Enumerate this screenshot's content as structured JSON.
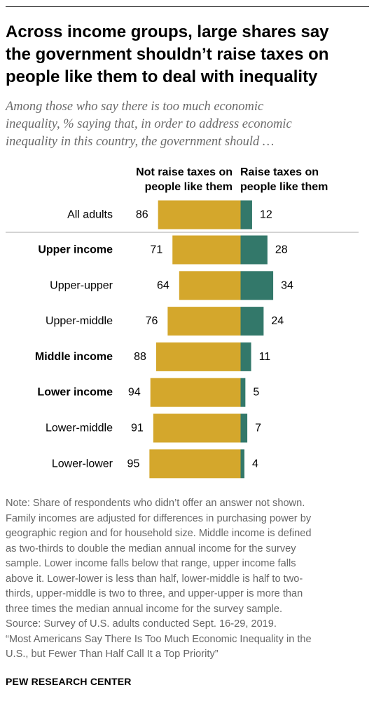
{
  "title_lines": [
    "Across income groups, large shares say",
    "the government shouldn’t raise taxes on",
    "people like them to deal with inequality"
  ],
  "subtitle_lines": [
    "Among those who say there is too much economic",
    "inequality, % saying that, in order to address economic",
    "inequality in this country, the government should …"
  ],
  "columns": {
    "left_lines": [
      "Not raise taxes on",
      "people like them"
    ],
    "right_lines": [
      "Raise taxes on",
      "people like them"
    ]
  },
  "colors": {
    "not_raise": "#d4a72c",
    "raise": "#33786a",
    "divider": "#aaaaaa"
  },
  "chart_data": {
    "type": "bar",
    "orientation": "horizontal-diverging",
    "categories": [
      "All adults",
      "Upper income",
      "Upper-upper",
      "Upper-middle",
      "Middle income",
      "Lower income",
      "Lower-middle",
      "Lower-lower"
    ],
    "bold_categories": [
      "Upper income",
      "Middle income",
      "Lower income"
    ],
    "series": [
      {
        "name": "Not raise taxes on people like them",
        "values": [
          86,
          71,
          64,
          76,
          88,
          94,
          91,
          95
        ]
      },
      {
        "name": "Raise taxes on people like them",
        "values": [
          12,
          28,
          34,
          24,
          11,
          5,
          7,
          4
        ]
      }
    ]
  },
  "note_lines": [
    "Note: Share of respondents who didn’t offer an answer not shown.",
    "Family incomes are adjusted for differences in purchasing power by",
    "geographic region and for household size. Middle income is defined",
    "as two-thirds to double the median annual income for the survey",
    "sample. Lower income falls below that range, upper income falls",
    "above it. Lower-lower is less than half, lower-middle is half to two-",
    "thirds, upper-middle is two to three, and upper-upper is more than",
    "three times the median annual income for the survey sample.",
    "Source: Survey of U.S. adults conducted Sept. 16-29, 2019.",
    "“Most Americans Say There Is Too Much Economic Inequality in the",
    "U.S., but Fewer Than Half Call It a Top Priority”"
  ],
  "brand": "PEW RESEARCH CENTER"
}
